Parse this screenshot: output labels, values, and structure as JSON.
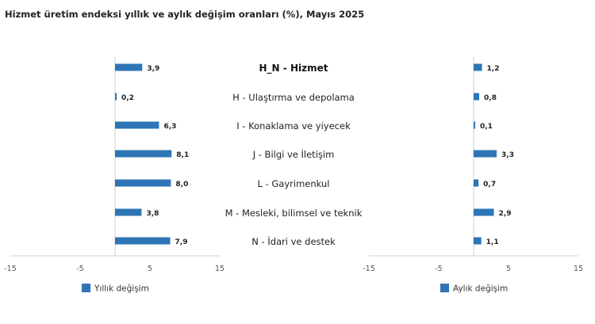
{
  "title": "Hizmet üretim endeksi yıllık ve aylık değişim oranları (%), Mayıs 2025",
  "chart_data": {
    "type": "bar",
    "orientation": "horizontal",
    "categories": [
      "H_N - Hizmet",
      "H - Ulaştırma ve depolama",
      "I - Konaklama ve yiyecek",
      "J - Bilgi ve İletişim",
      "L - Gayrimenkul",
      "M - Mesleki, bilimsel ve teknik",
      "N - İdari ve destek"
    ],
    "highlight_category_index": 0,
    "panels": [
      {
        "series_name": "Yıllık değişim",
        "values": [
          3.9,
          0.2,
          6.3,
          8.1,
          8.0,
          3.8,
          7.9
        ],
        "value_labels": [
          "3,9",
          "0,2",
          "6,3",
          "8,1",
          "8,0",
          "3,8",
          "7,9"
        ],
        "xlim": [
          -15,
          15
        ],
        "ticks": [
          "-15",
          "-5",
          "5",
          "15"
        ],
        "tick_values": [
          -15,
          -5,
          5,
          15
        ]
      },
      {
        "series_name": "Aylık değişim",
        "values": [
          1.2,
          0.8,
          0.1,
          3.3,
          0.7,
          2.9,
          1.1
        ],
        "value_labels": [
          "1,2",
          "0,8",
          "0,1",
          "3,3",
          "0,7",
          "2,9",
          "1,1"
        ],
        "xlim": [
          -15,
          15
        ],
        "ticks": [
          "-15",
          "-5",
          "5",
          "15"
        ],
        "tick_values": [
          -15,
          -5,
          5,
          15
        ]
      }
    ],
    "bar_color": "#2e75b6",
    "axis_color": "#d0d0d0",
    "legend_position": "bottom-left",
    "grid": false
  }
}
